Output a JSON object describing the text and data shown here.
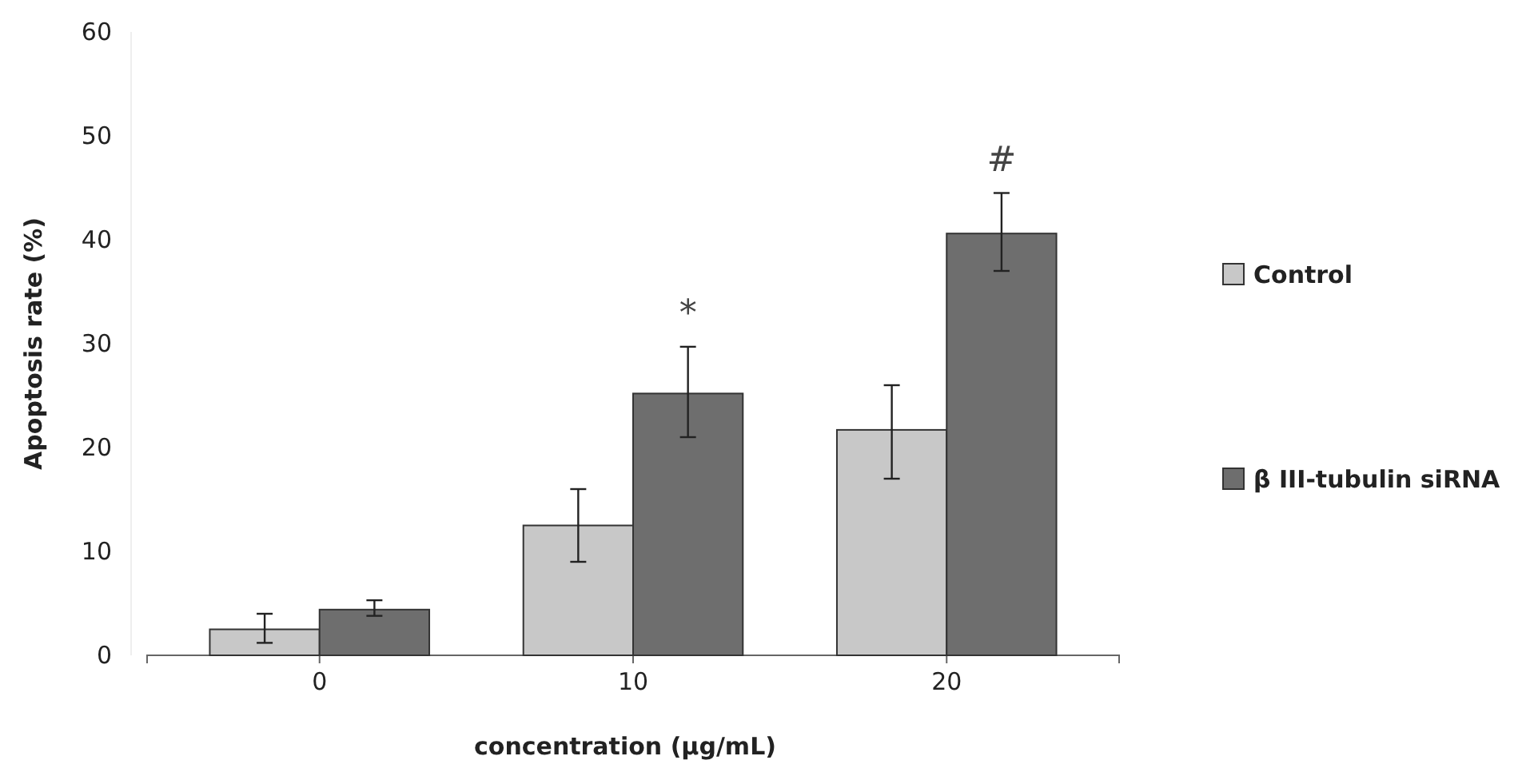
{
  "chart_data": {
    "type": "bar",
    "xlabel": "concentration (μg/mL)",
    "ylabel": "Apoptosis rate (%)",
    "categories": [
      "0",
      "10",
      "20"
    ],
    "series": [
      {
        "name": "Control",
        "color": "#c8c8c8",
        "values": [
          2.5,
          12.5,
          21.7
        ],
        "errors": [
          [
            1.2,
            4.0
          ],
          [
            9,
            16
          ],
          [
            17,
            26
          ]
        ]
      },
      {
        "name": "β III-tubulin siRNA",
        "color": "#6e6e6e",
        "values": [
          4.4,
          25.2,
          40.6
        ],
        "errors": [
          [
            3.8,
            5.3
          ],
          [
            21,
            29.7
          ],
          [
            37,
            44.5
          ]
        ]
      }
    ],
    "ylim": [
      0,
      60
    ],
    "yticks": [
      0,
      10,
      20,
      30,
      40,
      50,
      60
    ],
    "grid": false,
    "legend": "right",
    "annotations": [
      "*",
      "#"
    ]
  }
}
